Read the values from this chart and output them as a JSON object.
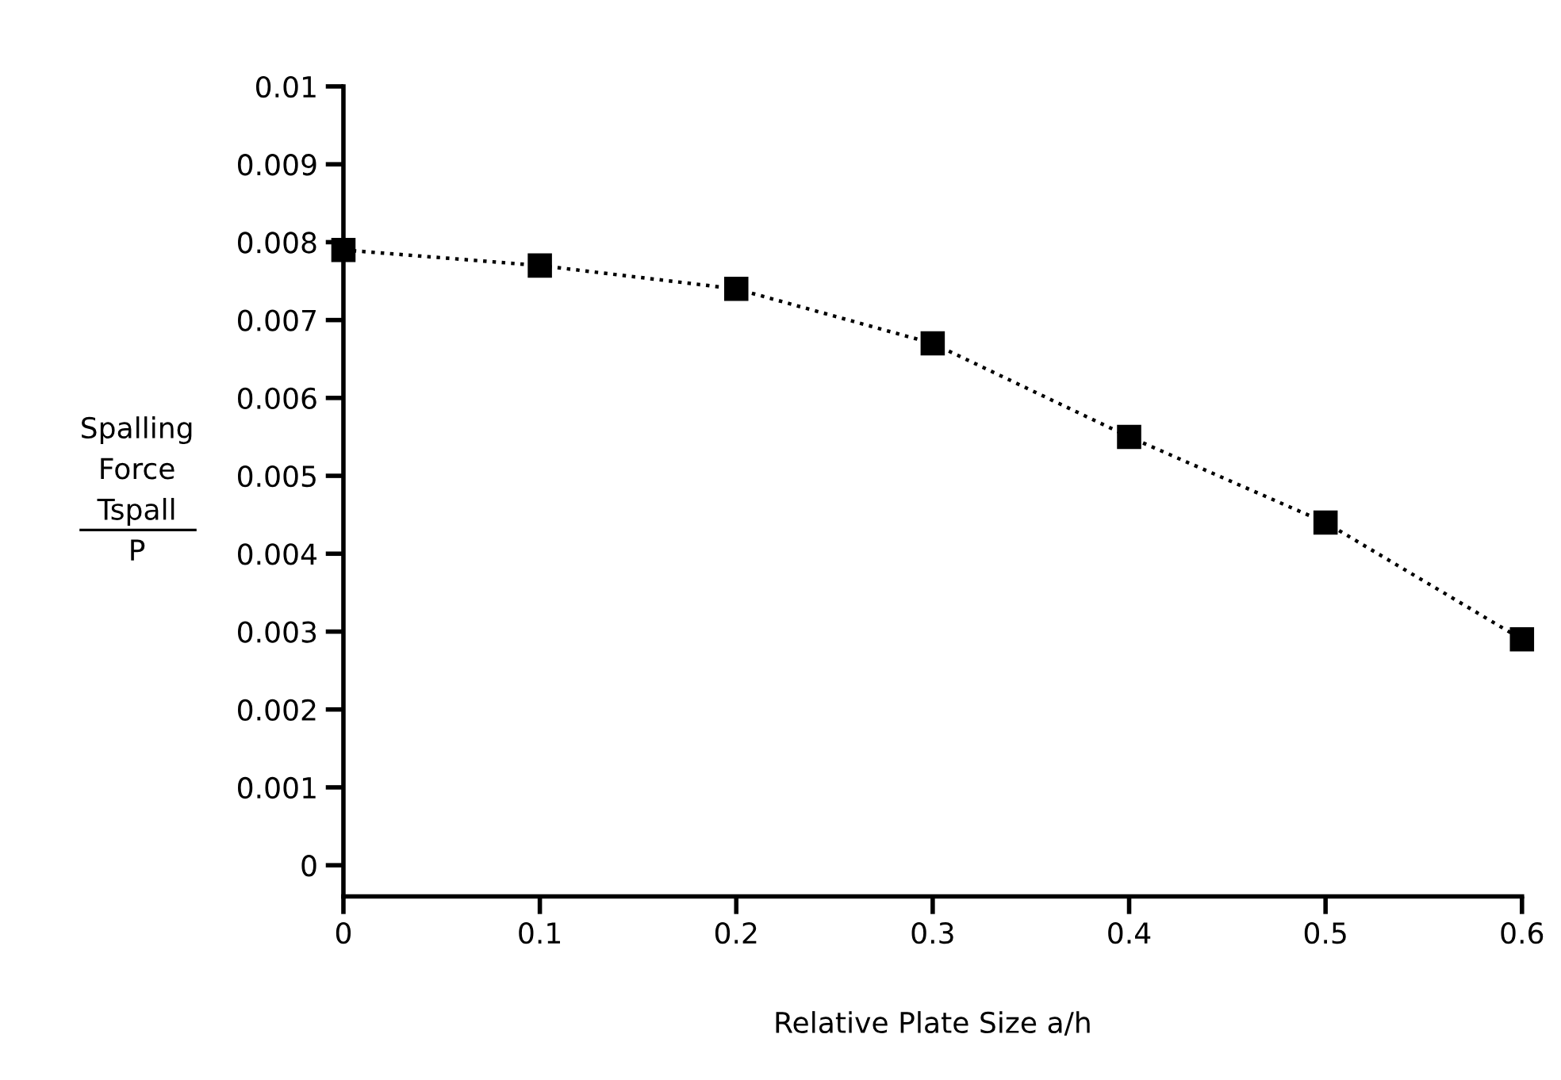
{
  "chart_data": {
    "type": "line",
    "xlabel": "Relative Plate Size a/h",
    "ylabel": "Spalling\nForce\nTspall\nP",
    "x": [
      0,
      0.1,
      0.2,
      0.3,
      0.4,
      0.5,
      0.6
    ],
    "series": [
      {
        "color": "#000000",
        "values": [
          0.0079,
          0.0077,
          0.0074,
          0.0067,
          0.0055,
          0.0044,
          0.0029
        ]
      }
    ],
    "xlim": [
      0,
      0.6
    ],
    "xticks": [
      0,
      0.1,
      0.2,
      0.3,
      0.4,
      0.5,
      0.6
    ],
    "ylim": [
      -0.0004,
      0.01
    ],
    "yticks": [
      0,
      0.001,
      0.002,
      0.003,
      0.004,
      0.005,
      0.006,
      0.007,
      0.008,
      0.009,
      0.01
    ],
    "marker": "square",
    "line_style": "dotted",
    "grid": false,
    "legend": false
  }
}
